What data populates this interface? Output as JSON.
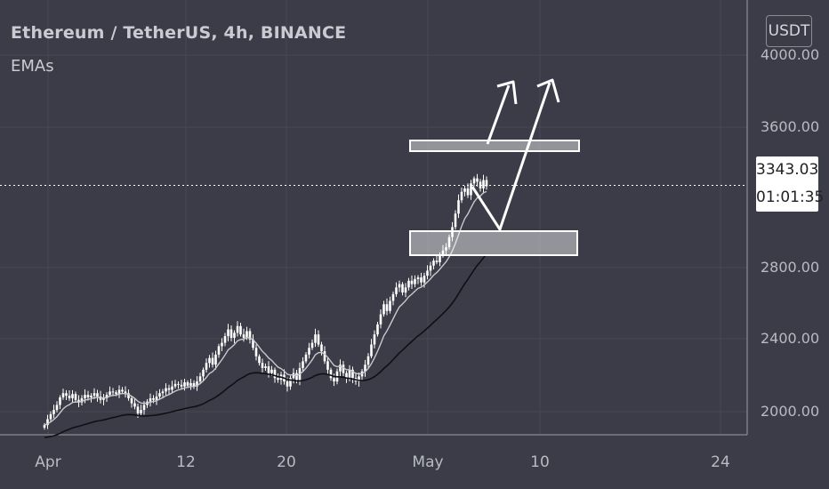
{
  "header": {
    "title": "Ethereum / TetherUS, 4h, BINANCE",
    "indicator": "EMAs",
    "unit": "USDT"
  },
  "price_badge": {
    "price": "3343.03",
    "countdown": "01:01:35"
  },
  "chart_data": {
    "type": "candlestick",
    "x_ticks": [
      "Apr",
      "12",
      "20",
      "May",
      "10",
      "24"
    ],
    "y_ticks": [
      "4000.00",
      "3600.00",
      "2800.00",
      "2400.00",
      "2000.00"
    ],
    "ylim": [
      1880,
      4180
    ],
    "last_price": 3343.03,
    "colors": {
      "background": "#3b3c48",
      "candle": "#ffffff",
      "ema_fast": "#c8c8cc",
      "ema_slow": "#101014"
    },
    "close": [
      1920,
      1955,
      1985,
      2010,
      2040,
      2085,
      2110,
      2095,
      2080,
      2105,
      2070,
      2055,
      2080,
      2100,
      2085,
      2095,
      2110,
      2090,
      2070,
      2080,
      2100,
      2120,
      2115,
      2105,
      2130,
      2120,
      2110,
      2080,
      2050,
      2030,
      1990,
      2010,
      2040,
      2060,
      2080,
      2070,
      2090,
      2110,
      2120,
      2140,
      2130,
      2150,
      2165,
      2160,
      2150,
      2175,
      2155,
      2170,
      2150,
      2180,
      2210,
      2250,
      2290,
      2320,
      2280,
      2340,
      2390,
      2410,
      2450,
      2490,
      2440,
      2470,
      2510,
      2460,
      2440,
      2480,
      2430,
      2380,
      2330,
      2290,
      2260,
      2270,
      2230,
      2250,
      2200,
      2190,
      2220,
      2180,
      2150,
      2200,
      2230,
      2190,
      2260,
      2300,
      2340,
      2380,
      2410,
      2460,
      2400,
      2360,
      2300,
      2250,
      2200,
      2180,
      2240,
      2280,
      2230,
      2200,
      2250,
      2200,
      2180,
      2210,
      2240,
      2280,
      2330,
      2400,
      2460,
      2520,
      2580,
      2640,
      2600,
      2660,
      2700,
      2740,
      2760,
      2710,
      2740,
      2780,
      2760,
      2790,
      2800,
      2770,
      2810,
      2840,
      2870,
      2900,
      2890,
      2930,
      2960,
      2980,
      3040,
      3100,
      3180,
      3260,
      3310,
      3330,
      3290,
      3360,
      3390,
      3370,
      3330,
      3380,
      3343
    ]
  }
}
